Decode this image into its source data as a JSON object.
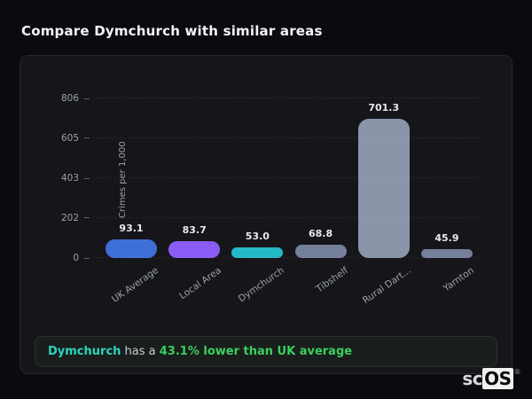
{
  "header": {
    "title": "Compare Dymchurch with similar areas"
  },
  "chart_data": {
    "type": "bar",
    "categories": [
      "UK Average",
      "Local Area",
      "Dymchurch",
      "Tibshelf",
      "Rural Dart...",
      "Yarnton"
    ],
    "values": [
      93.1,
      83.7,
      53.0,
      68.8,
      701.3,
      45.9
    ],
    "value_labels": [
      "93.1",
      "83.7",
      "53.0",
      "68.8",
      "701.3",
      "45.9"
    ],
    "bar_colors": [
      "#3e6fd6",
      "#8a5cf5",
      "#23b9c6",
      "#75809a",
      "#8a95aa",
      "#75809a"
    ],
    "title": "",
    "xlabel": "",
    "ylabel": "Crimes per 1,000",
    "yticks": [
      0,
      202,
      403,
      605,
      806
    ],
    "ylim": [
      0,
      806
    ],
    "grid": "dashed-horizontal",
    "legend": "none"
  },
  "note": {
    "area": "Dymchurch",
    "middle": " has a ",
    "highlight": "43.1% lower than UK average"
  },
  "logo": {
    "prefix": "sc",
    "suffix": "OS",
    "registered": "®"
  }
}
